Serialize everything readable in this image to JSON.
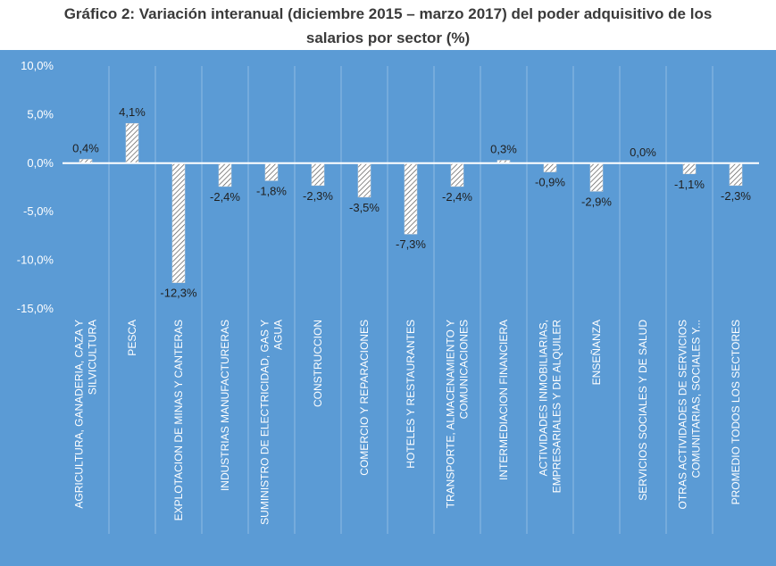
{
  "chart_data": {
    "type": "bar",
    "title_lines": [
      "Gráfico 2: Variación interanual (diciembre 2015 – marzo 2017) del poder adquisitivo de los",
      "salarios por sector (%)"
    ],
    "categories": [
      [
        "AGRICULTURA, GANADERIA, CAZA Y",
        "SILVICULTURA"
      ],
      [
        "PESCA"
      ],
      [
        "EXPLOTACION DE MINAS Y CANTERAS"
      ],
      [
        "INDUSTRIAS MANUFACTURERAS"
      ],
      [
        "SUMINISTRO DE ELECTRICIDAD, GAS Y",
        "AGUA"
      ],
      [
        "CONSTRUCCION"
      ],
      [
        "COMERCIO Y REPARACIONES"
      ],
      [
        "HOTELES Y RESTAURANTES"
      ],
      [
        "TRANSPORTE, ALMACENAMIENTO Y",
        "COMUNICACIONES"
      ],
      [
        "INTERMEDIACION FINANCIERA"
      ],
      [
        "ACTIVIDADES INMOBILIARIAS,",
        "EMPRESARIALES Y DE ALQUILER"
      ],
      [
        "ENSEÑANZA"
      ],
      [
        "SERVICIOS SOCIALES Y DE SALUD"
      ],
      [
        "OTRAS ACTIVIDADES DE SERVICIOS",
        "COMUNITARIAS, SOCIALES Y..."
      ],
      [
        "PROMEDIO TODOS LOS SECTORES"
      ]
    ],
    "values": [
      0.4,
      4.1,
      -12.3,
      -2.4,
      -1.8,
      -2.3,
      -3.5,
      -7.3,
      -2.4,
      0.3,
      -0.9,
      -2.9,
      0.0,
      -1.1,
      -2.3
    ],
    "data_labels": [
      "0,4%",
      "4,1%",
      "-12,3%",
      "-2,4%",
      "-1,8%",
      "-2,3%",
      "-3,5%",
      "-7,3%",
      "-2,4%",
      "0,3%",
      "-0,9%",
      "-2,9%",
      "0,0%",
      "-1,1%",
      "-2,3%"
    ],
    "y_ticks": [
      10,
      5,
      0,
      -5,
      -10,
      -15
    ],
    "y_tick_labels": [
      "10,0%",
      "5,0%",
      "0,0%",
      "-5,0%",
      "-10,0%",
      "-15,0%"
    ],
    "ylim": [
      -15,
      10
    ],
    "xlabel": "",
    "ylabel": "",
    "grid": "vertical separators between categories",
    "legend": "none",
    "colors": {
      "plot_background": "#5b9bd5",
      "bar_fill": "#ffffff",
      "bar_hatch": "#595959",
      "zero_line": "#ffffff",
      "separator": "#8fbbe4",
      "axis_text": "#ffffff",
      "label_text": "#1f1f1f",
      "title_text": "#3a3a3a"
    }
  }
}
